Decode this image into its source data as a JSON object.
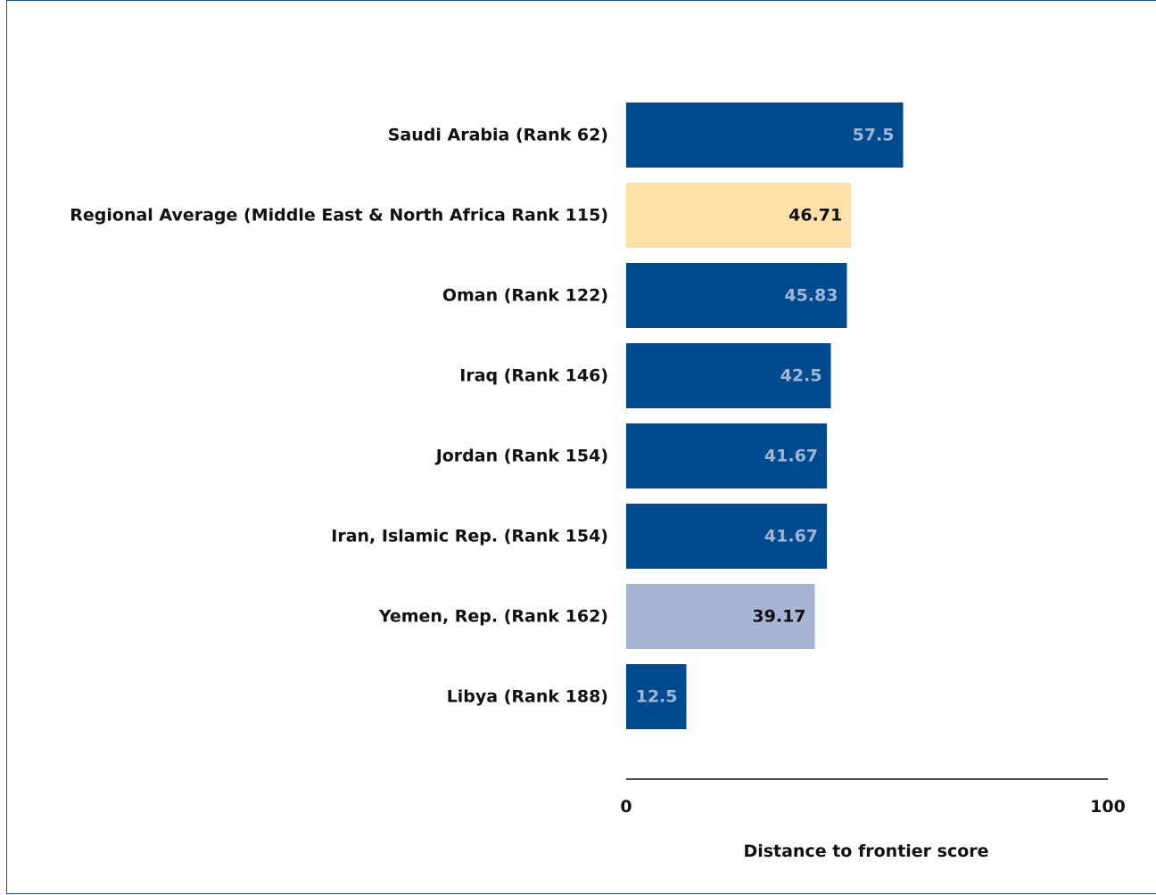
{
  "chart_data": {
    "type": "bar",
    "orientation": "horizontal",
    "categories": [
      "Saudi Arabia (Rank 62)",
      "Regional Average (Middle East & North Africa Rank 115)",
      "Oman (Rank 122)",
      "Iraq (Rank 146)",
      "Jordan (Rank 154)",
      "Iran, Islamic Rep. (Rank 154)",
      "Yemen, Rep. (Rank 162)",
      "Libya (Rank 188)"
    ],
    "values": [
      57.5,
      46.71,
      45.83,
      42.5,
      41.67,
      41.67,
      39.17,
      12.5
    ],
    "value_labels": [
      "57.5",
      "46.71",
      "45.83",
      "42.5",
      "41.67",
      "41.67",
      "39.17",
      "12.5"
    ],
    "bar_colors": [
      "#004a8f",
      "#fde1a9",
      "#004a8f",
      "#004a8f",
      "#004a8f",
      "#004a8f",
      "#a7b4d6",
      "#004a8f"
    ],
    "label_colors": [
      "#9fb6d8",
      "#111111",
      "#9fb6d8",
      "#9fb6d8",
      "#9fb6d8",
      "#9fb6d8",
      "#111111",
      "#9fb6d8"
    ],
    "xlim": [
      0,
      100
    ],
    "x_ticks": [
      "0",
      "100"
    ],
    "xlabel": "Distance to frontier score",
    "ylabel": "",
    "title": "",
    "grid": false,
    "legend": "none"
  }
}
